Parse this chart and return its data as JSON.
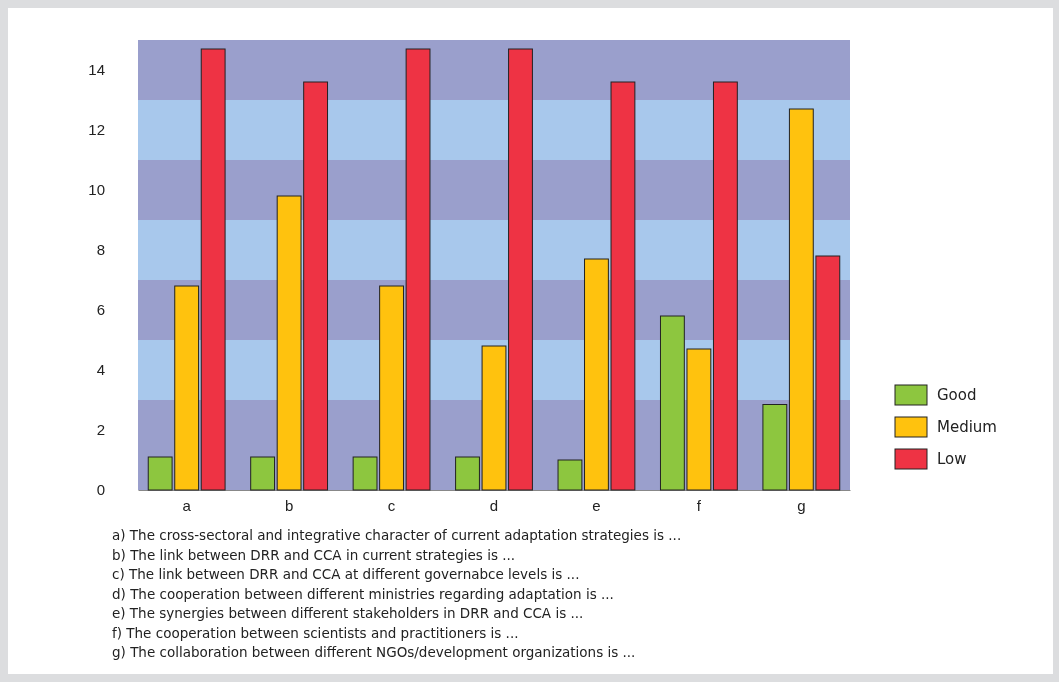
{
  "chart_data": {
    "type": "bar",
    "categories": [
      "a",
      "b",
      "c",
      "d",
      "e",
      "f",
      "g"
    ],
    "series": [
      {
        "name": "Good",
        "color": "#8dc63f",
        "values": [
          1.1,
          1.1,
          1.1,
          1.1,
          1.0,
          5.8,
          2.85
        ]
      },
      {
        "name": "Medium",
        "color": "#ffc20e",
        "values": [
          6.8,
          9.8,
          6.8,
          4.8,
          7.7,
          4.7,
          12.7
        ]
      },
      {
        "name": "Low",
        "color": "#ee3344",
        "values": [
          14.7,
          13.6,
          14.7,
          14.7,
          13.6,
          13.6,
          7.8
        ]
      }
    ],
    "ylim": [
      0,
      15
    ],
    "yticks": [
      0,
      2,
      4,
      6,
      8,
      10,
      12,
      14
    ],
    "legend": "right",
    "bands": [
      {
        "axis": "y",
        "from": 0,
        "to": 3,
        "color": "#9a9fcc"
      },
      {
        "axis": "y",
        "from": 3,
        "to": 5,
        "color": "#a8c8ec"
      },
      {
        "axis": "y",
        "from": 5,
        "to": 7,
        "color": "#9a9fcc"
      },
      {
        "axis": "y",
        "from": 7,
        "to": 9,
        "color": "#a8c8ec"
      },
      {
        "axis": "y",
        "from": 9,
        "to": 11,
        "color": "#9a9fcc"
      },
      {
        "axis": "y",
        "from": 11,
        "to": 13,
        "color": "#a8c8ec"
      },
      {
        "axis": "y",
        "from": 13,
        "to": 15,
        "color": "#9a9fcc"
      }
    ],
    "annotations": [
      "a) The cross-sectoral and integrative character of current adaptation strategies is ...",
      "b) The link between DRR and CCA in current strategies is ...",
      "c) The link between DRR and CCA at different governabce levels is ...",
      "d) The cooperation between different ministries regarding adaptation is ...",
      "e) The synergies between different stakeholders in DRR and CCA is ...",
      "f) The cooperation between scientists and practitioners is ...",
      "g) The collaboration between different NGOs/development organizations is ..."
    ]
  }
}
